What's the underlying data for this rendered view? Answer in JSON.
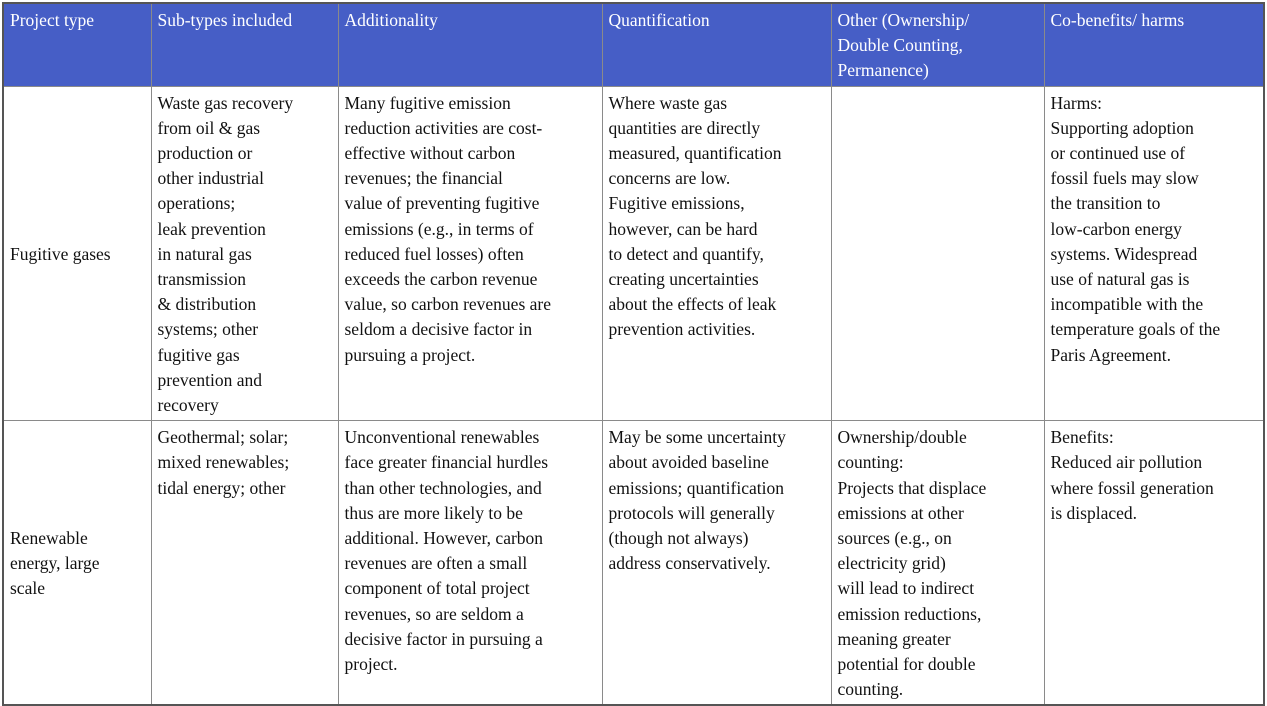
{
  "colors": {
    "header_bg": "#465ec6",
    "header_text": "#ffffff",
    "border": "#8a8a8a"
  },
  "headers": [
    "Project type",
    "Sub-types included",
    "Additionality",
    "Quantification",
    "Other (Ownership/\nDouble Counting,\nPermanence)",
    "Co-benefits/ harms"
  ],
  "rows": [
    {
      "cells": [
        "Fugitive gases",
        "Waste gas recovery\nfrom oil & gas\nproduction or\nother industrial\noperations;\nleak prevention\nin natural gas\ntransmission\n& distribution\nsystems; other\nfugitive gas\nprevention and\nrecovery",
        "Many fugitive emission\nreduction activities are cost-\neffective without carbon\nrevenues; the financial\nvalue of preventing fugitive\nemissions (e.g., in terms of\nreduced fuel losses) often\nexceeds the carbon revenue\nvalue, so carbon revenues are\nseldom a decisive factor in\npursuing a project.",
        "Where waste gas\nquantities are directly\nmeasured, quantification\nconcerns are low.\nFugitive emissions,\nhowever, can be hard\nto detect and quantify,\ncreating uncertainties\nabout the effects of leak\nprevention activities.",
        "",
        "Harms:\nSupporting adoption\nor continued use of\nfossil fuels may slow\nthe transition to\nlow-carbon energy\nsystems. Widespread\nuse of natural gas is\nincompatible with the\ntemperature goals of the\nParis Agreement."
      ]
    },
    {
      "cells": [
        "Renewable\nenergy, large\nscale",
        "Geothermal; solar;\nmixed renewables;\ntidal energy; other",
        "Unconventional renewables\nface greater financial hurdles\nthan other technologies, and\nthus are more likely to be\nadditional. However, carbon\nrevenues are often a small\ncomponent of total project\nrevenues, so are seldom a\ndecisive factor in pursuing a\nproject.",
        "May be some uncertainty\nabout avoided baseline\nemissions; quantification\nprotocols will generally\n(though not always)\naddress conservatively.",
        "Ownership/double\ncounting:\nProjects that displace\nemissions at other\nsources (e.g., on\nelectricity grid)\nwill lead to indirect\nemission reductions,\nmeaning greater\npotential for double\ncounting.",
        "Benefits:\nReduced air pollution\nwhere fossil generation\nis displaced."
      ]
    }
  ]
}
